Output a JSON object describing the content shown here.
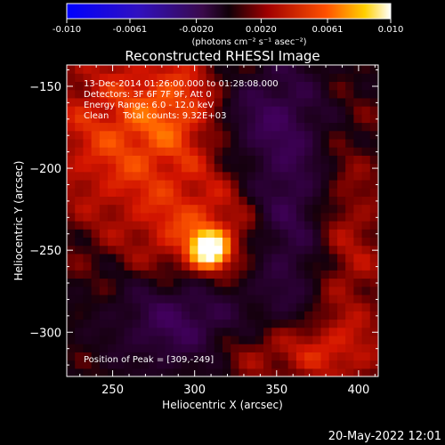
{
  "chart_data": {
    "type": "heatmap",
    "title": "Reconstructed RHESSI Image",
    "xlabel": "Heliocentric X (arcsec)",
    "ylabel": "Heliocentric Y (arcsec)",
    "x_ticks": [
      250,
      300,
      350,
      400
    ],
    "y_ticks": [
      -150,
      -200,
      -250,
      -300
    ],
    "xlim": [
      222,
      412
    ],
    "ylim": [
      -327,
      -137
    ],
    "colorbar": {
      "ticks": [
        "-0.010",
        "-0.0061",
        "-0.0020",
        "0.0020",
        "0.0061",
        "0.010"
      ],
      "range": [
        -0.01,
        0.01
      ],
      "unit_label": "(photons cm⁻² s⁻¹ asec⁻²)"
    },
    "peak": {
      "x": 309,
      "y": -249
    },
    "info_lines": [
      "13-Dec-2014 01:26:00.000 to 01:28:08.000",
      "Detectors: 3F 6F 7F 9F, Att 0",
      "Energy Range: 6.0 - 12.0 keV",
      "Clean     Total counts: 9.32E+03"
    ],
    "peak_label": "Position of Peak = [309,-249]"
  },
  "footer": {
    "timestamp": "20-May-2022 12:01"
  }
}
